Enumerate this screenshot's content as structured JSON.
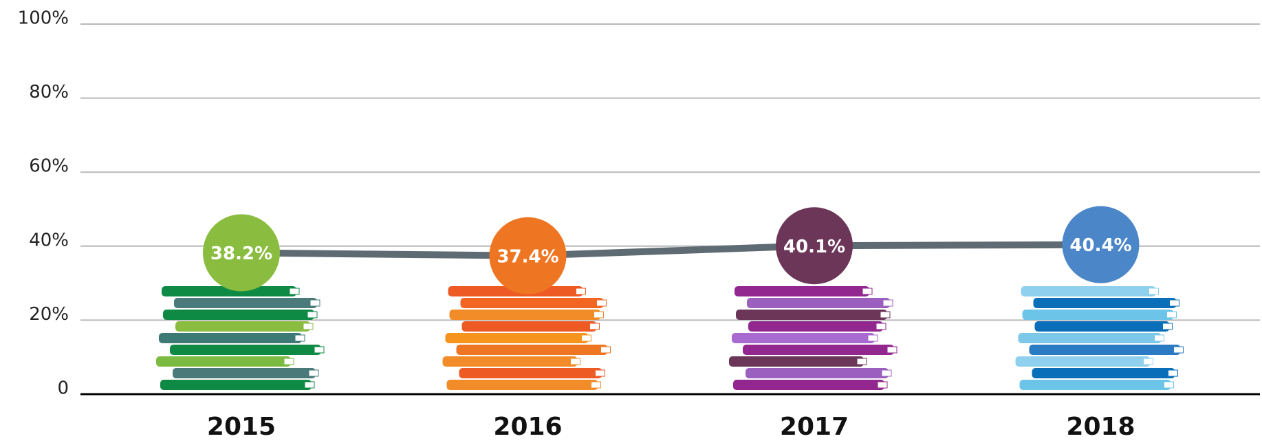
{
  "chart_data": {
    "type": "line",
    "categories": [
      "2015",
      "2016",
      "2017",
      "2018"
    ],
    "series": [
      {
        "color": "#5f6b73",
        "values": [
          38.2,
          37.4,
          40.1,
          40.4
        ],
        "value_labels": [
          "38.2%",
          "37.4%",
          "40.1%",
          "40.4%"
        ],
        "point_colors": [
          "#8abd3f",
          "#ee7623",
          "#6b3658",
          "#4a86c8"
        ]
      }
    ],
    "ylim": [
      0,
      100
    ],
    "yticks": [
      0,
      {
        "value": 20,
        "label": "20%"
      },
      {
        "value": 40,
        "label": "40%"
      },
      {
        "value": 60,
        "label": "60%"
      },
      {
        "value": 80,
        "label": "80%"
      },
      {
        "value": 100,
        "label": "100%"
      }
    ],
    "grid": true
  }
}
